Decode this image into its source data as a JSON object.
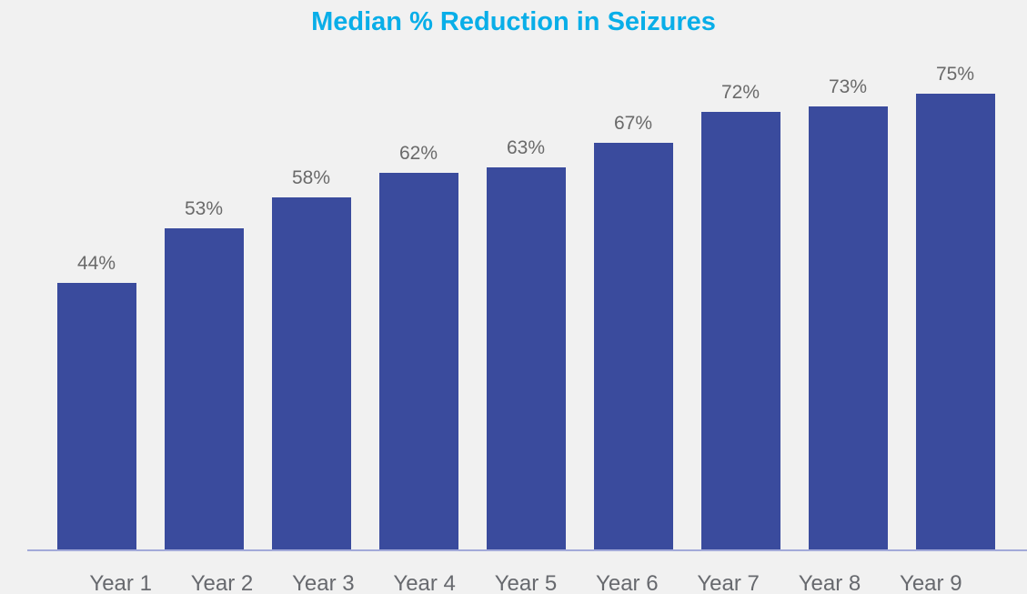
{
  "chart_data": {
    "type": "bar",
    "title": "Median % Reduction in Seizures",
    "categories": [
      "Year 1",
      "Year 2",
      "Year 3",
      "Year 4",
      "Year 5",
      "Year 6",
      "Year 7",
      "Year 8",
      "Year 9"
    ],
    "values": [
      44,
      53,
      58,
      62,
      63,
      67,
      72,
      73,
      75
    ],
    "value_labels": [
      "44%",
      "53%",
      "58%",
      "62%",
      "63%",
      "67%",
      "72%",
      "73%",
      "75%"
    ],
    "xlabel": "",
    "ylabel": "",
    "ylim": [
      0,
      80
    ],
    "grid": false,
    "legend": false,
    "colors": {
      "background": "#F1F1F1",
      "bar": "#3A4B9D",
      "title": "#09AEE8",
      "value_label": "#6A6A6A",
      "axis_label": "#67696E",
      "axis_line": "#A3AAD9"
    }
  }
}
